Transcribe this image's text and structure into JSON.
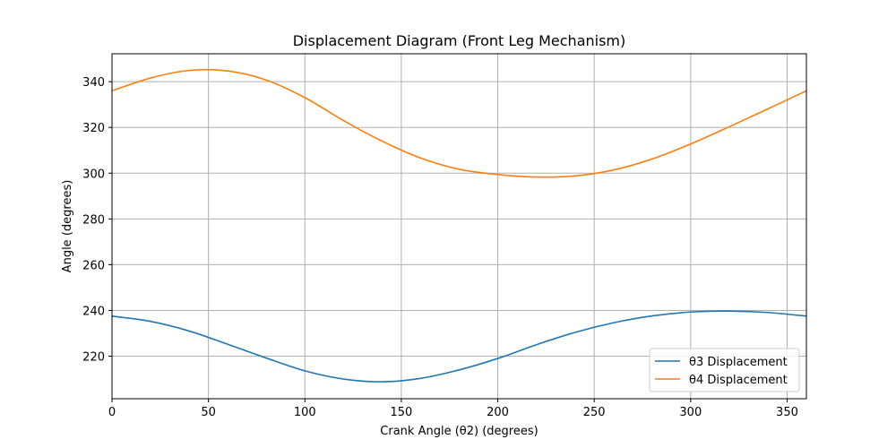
{
  "chart_data": {
    "type": "line",
    "title": "Displacement Diagram (Front Leg Mechanism)",
    "xlabel": "Crank Angle (θ2) (degrees)",
    "ylabel": "Angle (degrees)",
    "xlim": [
      0,
      360
    ],
    "ylim": [
      201.4,
      352.2
    ],
    "xticks": [
      0,
      50,
      100,
      150,
      200,
      250,
      300,
      350
    ],
    "yticks": [
      220,
      240,
      260,
      280,
      300,
      320,
      340
    ],
    "grid": true,
    "legend_position": "lower-right",
    "x": [
      0,
      20,
      40,
      60,
      80,
      100,
      120,
      140,
      160,
      180,
      200,
      220,
      240,
      260,
      280,
      300,
      320,
      340,
      360
    ],
    "series": [
      {
        "name": "θ3 Displacement",
        "color": "#1f77b4",
        "values": [
          237.5,
          235.2,
          231.0,
          225.2,
          219.2,
          213.6,
          210.0,
          208.8,
          210.3,
          214.0,
          219.0,
          225.0,
          230.4,
          234.6,
          237.6,
          239.3,
          239.7,
          239.1,
          237.5
        ]
      },
      {
        "name": "θ4 Displacement",
        "color": "#ff7f0e",
        "values": [
          336.0,
          341.6,
          344.9,
          344.7,
          340.7,
          333.0,
          323.0,
          314.0,
          306.6,
          301.7,
          299.4,
          298.3,
          298.8,
          301.4,
          306.2,
          312.8,
          320.3,
          328.1,
          336.0
        ]
      }
    ]
  }
}
